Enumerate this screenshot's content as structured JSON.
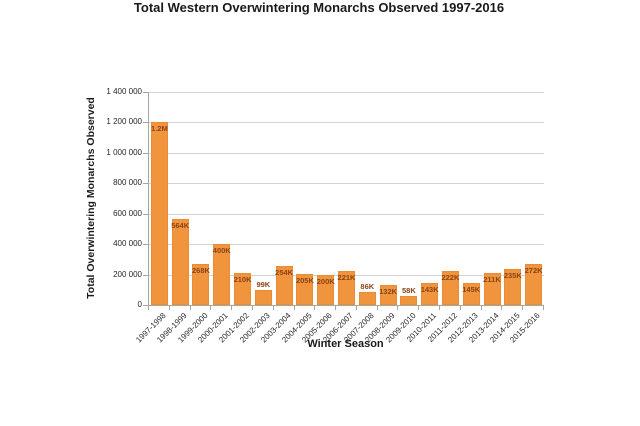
{
  "chart_data": {
    "type": "bar",
    "title": "Total Western Overwintering Monarchs Observed 1997-2016",
    "xlabel": "Winter Season",
    "ylabel": "Total Overwintering Monarchs Observed",
    "categories": [
      "1997-1998",
      "1998-1999",
      "1999-2000",
      "2000-2001",
      "2001-2002",
      "2002-2003",
      "2003-2004",
      "2004-2005",
      "2005-2006",
      "2006-2007",
      "2007-2008",
      "2008-2009",
      "2009-2010",
      "2010-2011",
      "2011-2012",
      "2012-2013",
      "2013-2014",
      "2014-2015",
      "2015-2016"
    ],
    "values": [
      1200000,
      564000,
      268000,
      400000,
      210000,
      99000,
      254000,
      205000,
      200000,
      221000,
      86000,
      132000,
      58000,
      143000,
      222000,
      145000,
      211000,
      235000,
      272000
    ],
    "bar_labels": [
      "1.2M",
      "564K",
      "268K",
      "400K",
      "210K",
      "99K",
      "254K",
      "205K",
      "200K",
      "221K",
      "86K",
      "132K",
      "58K",
      "143K",
      "222K",
      "145K",
      "211K",
      "235K",
      "272K"
    ],
    "ylim": [
      0,
      1400000
    ],
    "ytick_values": [
      0,
      200000,
      400000,
      600000,
      800000,
      1000000,
      1200000,
      1400000
    ],
    "ytick_labels": [
      "0",
      "200 000",
      "400 000",
      "600 000",
      "800 000",
      "1 000 000",
      "1 200 000",
      "1 400 000"
    ],
    "grid": "on",
    "legend": "none",
    "colors": {
      "bar_fill": "#f0943e",
      "bar_edge": "#e88c36",
      "bar_label_text": "#8a4414",
      "gridline": "#d3d3d3",
      "axis_line": "#a6a6a6",
      "text": "#1a1a1a"
    }
  }
}
